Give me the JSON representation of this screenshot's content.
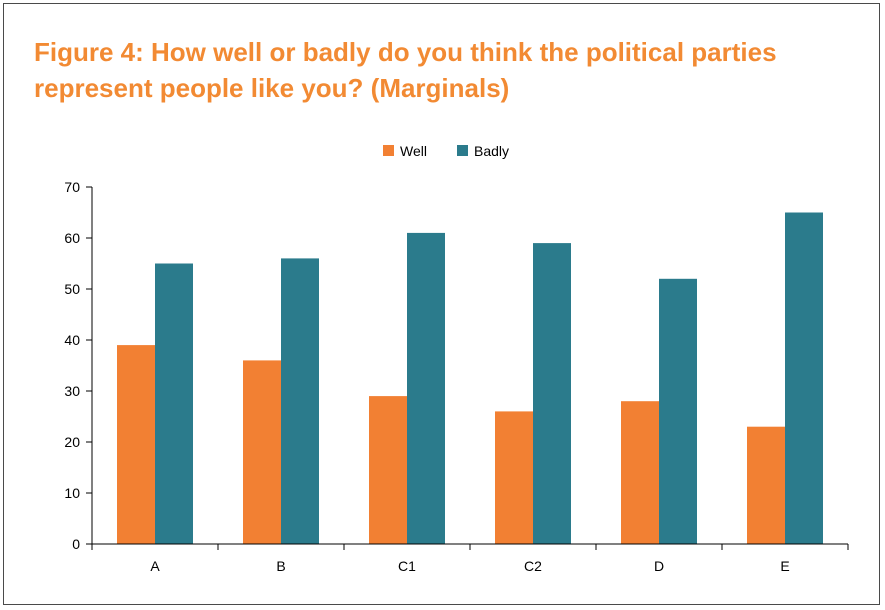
{
  "chart_data": {
    "type": "bar",
    "title": "Figure 4: How well or badly do you think the political parties represent people like you? (Marginals)",
    "categories": [
      "A",
      "B",
      "C1",
      "C2",
      "D",
      "E"
    ],
    "series": [
      {
        "name": "Well",
        "color": "#f28033",
        "values": [
          39,
          36,
          29,
          26,
          28,
          23
        ]
      },
      {
        "name": "Badly",
        "color": "#2b7b8c",
        "values": [
          55,
          56,
          61,
          59,
          52,
          65
        ]
      }
    ],
    "ylim": [
      0,
      70
    ],
    "yticks": [
      "0",
      "10",
      "20",
      "30",
      "40",
      "50",
      "60",
      "70"
    ],
    "xlabel": "",
    "ylabel": "",
    "grid": false,
    "legend_position": "top"
  }
}
